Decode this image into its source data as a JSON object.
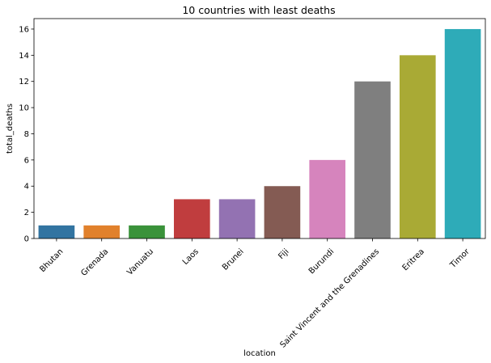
{
  "chart_data": {
    "type": "bar",
    "title": "10 countries with least deaths",
    "xlabel": "location",
    "ylabel": "total_deaths",
    "categories": [
      "Bhutan",
      "Grenada",
      "Vanuatu",
      "Laos",
      "Brunei",
      "Fiji",
      "Burundi",
      "Saint Vincent and the Grenadines",
      "Eritrea",
      "Timor"
    ],
    "values": [
      1,
      1,
      1,
      3,
      3,
      4,
      6,
      12,
      14,
      16
    ],
    "colors": [
      "#3274a1",
      "#e1812c",
      "#3a923a",
      "#c03d3e",
      "#9372b2",
      "#845b53",
      "#d684bd",
      "#7f7f7f",
      "#a9aa35",
      "#2eabb8"
    ],
    "ylim": [
      0,
      16.8
    ],
    "yticks": [
      0,
      2,
      4,
      6,
      8,
      10,
      12,
      14,
      16
    ],
    "grid": false,
    "legend": "none"
  }
}
